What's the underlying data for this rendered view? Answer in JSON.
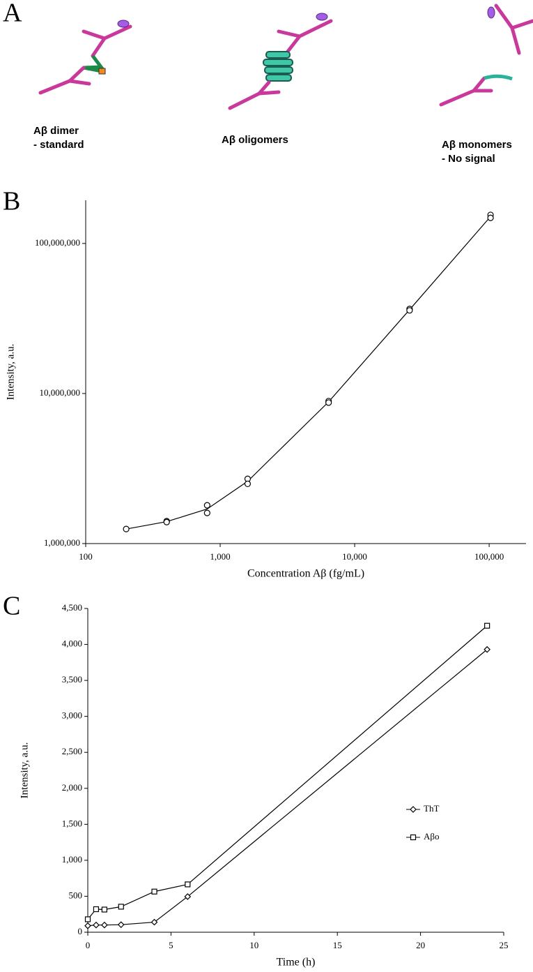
{
  "diagram": {
    "panel_label": "A",
    "captions": [
      [
        "Aβ dimer",
        "- standard"
      ],
      [
        "Aβ oligomers"
      ],
      [
        "Aβ monomers",
        "- No signal"
      ]
    ]
  },
  "chart_data": [
    {
      "panel_label": "B",
      "type": "scatter",
      "x_label": "Concentration Aβ (fg/mL)",
      "y_label": "Intensity, a.u.",
      "xscale": "log",
      "yscale": "log",
      "xlim": [
        100,
        188000
      ],
      "ylim": [
        1000000,
        194000000
      ],
      "xticks": [
        100,
        {
          "value": 1000,
          "label": "1,000"
        },
        {
          "value": 10000,
          "label": "10,000"
        },
        {
          "value": 100000,
          "label": "100,000"
        }
      ],
      "yticks": [
        {
          "value": 1000000,
          "label": "1,000,000"
        },
        {
          "value": 10000000,
          "label": "10,000,000"
        },
        {
          "value": 100000000,
          "label": "100,000,000"
        }
      ],
      "color": "#000000",
      "series": [
        {
          "mode": "markers",
          "x": [
            200,
            400,
            400,
            800,
            800,
            1600,
            1600,
            6400,
            6400,
            25600,
            25600,
            102400,
            102400
          ],
          "values": [
            1250000,
            1410000,
            1390000,
            1800000,
            1600000,
            2700000,
            2500000,
            8900000,
            8700000,
            36600000,
            35800000,
            155000000,
            148000000
          ]
        },
        {
          "mode": "line",
          "x": [
            200,
            400,
            800,
            1600,
            6400,
            25600,
            102400
          ],
          "values": [
            1250000,
            1400000,
            1700000,
            2600000,
            8800000,
            36200000,
            151000000
          ]
        }
      ]
    },
    {
      "panel_label": "C",
      "type": "line",
      "x_label": "Time (h)",
      "y_label": "Intensity, a.u.",
      "xlim": [
        0,
        25
      ],
      "ylim": [
        0,
        4500
      ],
      "xticks": [
        0,
        5,
        10,
        15,
        20,
        25
      ],
      "yticks": [
        0,
        500,
        {
          "value": 1000,
          "label": "1,000"
        },
        {
          "value": 1500,
          "label": "1,500"
        },
        {
          "value": 2000,
          "label": "2,000"
        },
        {
          "value": 2500,
          "label": "2,500"
        },
        {
          "value": 3000,
          "label": "3,000"
        },
        {
          "value": 3500,
          "label": "3,500"
        },
        {
          "value": 4000,
          "label": "4,000"
        },
        {
          "value": 4500,
          "label": "4,500"
        }
      ],
      "legend": "right",
      "x": [
        0,
        0.5,
        1,
        2,
        4,
        6,
        24
      ],
      "series": [
        {
          "name": "ThT",
          "marker": "diamond",
          "color": "#000000",
          "values": [
            90,
            100,
            100,
            105,
            140,
            495,
            3930
          ]
        },
        {
          "name": "Aβo",
          "marker": "square",
          "color": "#000000",
          "values": [
            180,
            320,
            315,
            355,
            565,
            665,
            4260
          ]
        }
      ]
    }
  ]
}
